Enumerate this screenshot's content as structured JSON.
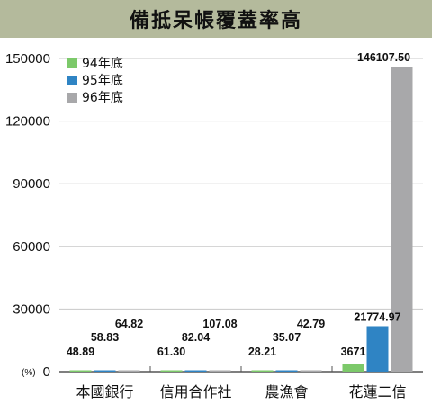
{
  "header": {
    "title": "備抵呆帳覆蓋率高"
  },
  "chart_data": {
    "type": "bar",
    "title": "備抵呆帳覆蓋率高",
    "unit_label": "(%)",
    "categories": [
      "本國銀行",
      "信用合作社",
      "農漁會",
      "花蓮二信"
    ],
    "series": [
      {
        "name": "94年底",
        "color": "#7cc96a",
        "values": [
          48.89,
          61.3,
          28.21,
          3671
        ],
        "labels": [
          "48.89",
          "61.30",
          "28.21",
          "3671"
        ]
      },
      {
        "name": "95年底",
        "color": "#2f84c4",
        "values": [
          58.83,
          82.04,
          35.07,
          21774.97
        ],
        "labels": [
          "58.83",
          "82.04",
          "35.07",
          "21774.97"
        ]
      },
      {
        "name": "96年底",
        "color": "#a8a8aa",
        "values": [
          64.82,
          107.08,
          42.79,
          146107.5
        ],
        "labels": [
          "64.82",
          "107.08",
          "42.79",
          "146107.50"
        ]
      }
    ],
    "y_ticks": [
      "0",
      "30000",
      "60000",
      "90000",
      "120000",
      "150000"
    ],
    "ylim": [
      0,
      150000
    ],
    "grid": true,
    "legend": "top-left"
  }
}
